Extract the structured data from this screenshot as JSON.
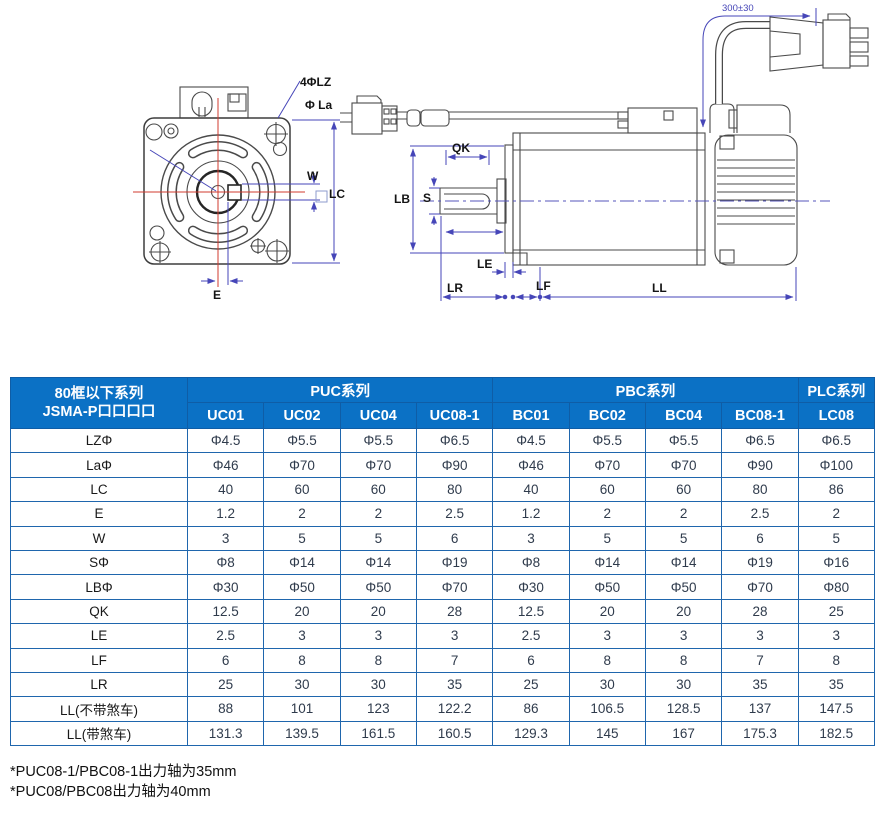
{
  "drawing": {
    "front_view": {
      "labels": {
        "holes": "4ΦLZ",
        "flange_dia": "Φ La",
        "w": "W",
        "lc": "LC",
        "e": "E"
      }
    },
    "side_view": {
      "labels": {
        "qk": "QK",
        "lb": "LB",
        "s": "S",
        "le": "LE",
        "lr": "LR",
        "lf": "LF",
        "ll": "LL",
        "cable_length": "300±30"
      }
    }
  },
  "table": {
    "corner_header_line1": "80框以下系列",
    "corner_header_line2": "JSMA-P口口口口",
    "groups": [
      {
        "label": "PUC系列",
        "span": 4
      },
      {
        "label": "PBC系列",
        "span": 4
      },
      {
        "label": "PLC系列",
        "span": 1
      }
    ],
    "columns": [
      "UC01",
      "UC02",
      "UC04",
      "UC08-1",
      "BC01",
      "BC02",
      "BC04",
      "BC08-1",
      "LC08"
    ],
    "rows": [
      {
        "label": "LZΦ",
        "values": [
          "Φ4.5",
          "Φ5.5",
          "Φ5.5",
          "Φ6.5",
          "Φ4.5",
          "Φ5.5",
          "Φ5.5",
          "Φ6.5",
          "Φ6.5"
        ]
      },
      {
        "label": "LaΦ",
        "values": [
          "Φ46",
          "Φ70",
          "Φ70",
          "Φ90",
          "Φ46",
          "Φ70",
          "Φ70",
          "Φ90",
          "Φ100"
        ]
      },
      {
        "label": "LC",
        "values": [
          "40",
          "60",
          "60",
          "80",
          "40",
          "60",
          "60",
          "80",
          "86"
        ]
      },
      {
        "label": "E",
        "values": [
          "1.2",
          "2",
          "2",
          "2.5",
          "1.2",
          "2",
          "2",
          "2.5",
          "2"
        ]
      },
      {
        "label": "W",
        "values": [
          "3",
          "5",
          "5",
          "6",
          "3",
          "5",
          "5",
          "6",
          "5"
        ]
      },
      {
        "label": "SΦ",
        "values": [
          "Φ8",
          "Φ14",
          "Φ14",
          "Φ19",
          "Φ8",
          "Φ14",
          "Φ14",
          "Φ19",
          "Φ16"
        ]
      },
      {
        "label": "LBΦ",
        "values": [
          "Φ30",
          "Φ50",
          "Φ50",
          "Φ70",
          "Φ30",
          "Φ50",
          "Φ50",
          "Φ70",
          "Φ80"
        ]
      },
      {
        "label": "QK",
        "values": [
          "12.5",
          "20",
          "20",
          "28",
          "12.5",
          "20",
          "20",
          "28",
          "25"
        ]
      },
      {
        "label": "LE",
        "values": [
          "2.5",
          "3",
          "3",
          "3",
          "2.5",
          "3",
          "3",
          "3",
          "3"
        ]
      },
      {
        "label": "LF",
        "values": [
          "6",
          "8",
          "8",
          "7",
          "6",
          "8",
          "8",
          "7",
          "8"
        ]
      },
      {
        "label": "LR",
        "values": [
          "25",
          "30",
          "30",
          "35",
          "25",
          "30",
          "30",
          "35",
          "35"
        ]
      },
      {
        "label": "LL(不带煞车)",
        "values": [
          "88",
          "101",
          "123",
          "122.2",
          "86",
          "106.5",
          "128.5",
          "137",
          "147.5"
        ]
      },
      {
        "label": "LL(带煞车)",
        "values": [
          "131.3",
          "139.5",
          "161.5",
          "160.5",
          "129.3",
          "145",
          "167",
          "175.3",
          "182.5"
        ]
      }
    ]
  },
  "footnotes": [
    "*PUC08-1/PBC08-1出力轴为35mm",
    "*PUC08/PBC08出力轴为40mm"
  ],
  "colors": {
    "header_bg": "#0b71c5",
    "table_border": "#1f66ad",
    "dimension_line": "#4646b8",
    "centerline_red": "#d23b2f",
    "drawing_line": "#4a4a4a"
  }
}
